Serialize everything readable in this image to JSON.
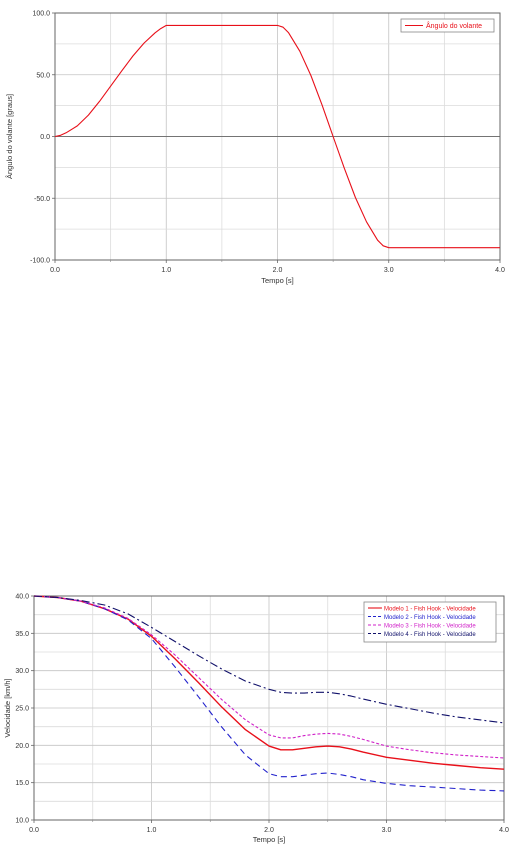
{
  "chart_data": [
    {
      "type": "line",
      "xlabel": "Tempo [s]",
      "ylabel": "Ângulo do volante [graus]",
      "xlim": [
        0,
        4
      ],
      "ylim": [
        -100,
        100
      ],
      "x_ticks": [
        "0.0",
        "1.0",
        "2.0",
        "3.0",
        "4.0"
      ],
      "y_ticks": [
        "100.0",
        "50.0",
        "0.0",
        "-50.0",
        "-100.0"
      ],
      "grid": true,
      "legend_position": "top-right",
      "series": [
        {
          "name": "Ângulo do volante",
          "color": "#e8101a",
          "dash": "solid",
          "x": [
            0,
            0.05,
            0.1,
            0.2,
            0.3,
            0.4,
            0.5,
            0.6,
            0.7,
            0.8,
            0.9,
            0.95,
            1.0,
            1.5,
            2.0,
            2.05,
            2.1,
            2.2,
            2.3,
            2.4,
            2.5,
            2.6,
            2.7,
            2.8,
            2.9,
            2.95,
            3.0,
            3.5,
            4.0
          ],
          "y": [
            0,
            1,
            3,
            8.6,
            17.3,
            28.4,
            40.7,
            53.2,
            65.2,
            75.6,
            84,
            87.4,
            90,
            90,
            90,
            88.5,
            84,
            69.1,
            49.4,
            25.7,
            0,
            -25.7,
            -49.4,
            -69.1,
            -84,
            -88.5,
            -90,
            -90,
            -90
          ]
        }
      ]
    },
    {
      "type": "line",
      "xlabel": "Tempo [s]",
      "ylabel": "Velocidade [km/h]",
      "xlim": [
        0,
        4
      ],
      "ylim": [
        10,
        40
      ],
      "x_ticks": [
        "0.0",
        "1.0",
        "2.0",
        "3.0",
        "4.0"
      ],
      "y_ticks": [
        "40.0",
        "35.0",
        "30.0",
        "25.0",
        "20.0",
        "15.0",
        "10.0"
      ],
      "grid": true,
      "legend_position": "top-right",
      "series": [
        {
          "name": "Modelo 1 - Fish Hook - Velocidade",
          "color": "#e8101a",
          "dash": "solid",
          "x": [
            0,
            0.2,
            0.4,
            0.6,
            0.8,
            1.0,
            1.2,
            1.4,
            1.6,
            1.8,
            2.0,
            2.1,
            2.2,
            2.3,
            2.4,
            2.5,
            2.6,
            2.7,
            2.8,
            3.0,
            3.2,
            3.4,
            3.6,
            3.8,
            4.0
          ],
          "y": [
            40,
            39.8,
            39.3,
            38.3,
            36.9,
            34.6,
            31.6,
            28.4,
            25.1,
            22.1,
            19.9,
            19.4,
            19.4,
            19.6,
            19.8,
            19.9,
            19.8,
            19.5,
            19.1,
            18.4,
            18.0,
            17.6,
            17.3,
            17.0,
            16.8
          ]
        },
        {
          "name": "Modelo 2 - Fish Hook - Velocidade",
          "color": "#2222cc",
          "dash": "6,4",
          "x": [
            0,
            0.2,
            0.4,
            0.6,
            0.8,
            1.0,
            1.2,
            1.4,
            1.6,
            1.8,
            2.0,
            2.1,
            2.2,
            2.3,
            2.4,
            2.5,
            2.6,
            2.7,
            2.8,
            3.0,
            3.2,
            3.4,
            3.6,
            3.8,
            4.0
          ],
          "y": [
            40,
            39.8,
            39.3,
            38.3,
            36.8,
            34.3,
            30.5,
            26.5,
            22.4,
            18.7,
            16.2,
            15.8,
            15.8,
            16.0,
            16.2,
            16.3,
            16.1,
            15.8,
            15.4,
            14.9,
            14.6,
            14.4,
            14.2,
            14.0,
            13.9
          ]
        },
        {
          "name": "Modelo 3 - Fish Hook - Velocidade",
          "color": "#d020c8",
          "dash": "3,2",
          "x": [
            0,
            0.2,
            0.4,
            0.6,
            0.8,
            1.0,
            1.2,
            1.4,
            1.6,
            1.8,
            2.0,
            2.1,
            2.2,
            2.3,
            2.4,
            2.5,
            2.6,
            2.7,
            2.8,
            3.0,
            3.2,
            3.4,
            3.6,
            3.8,
            4.0
          ],
          "y": [
            40,
            39.8,
            39.3,
            38.4,
            37.0,
            34.8,
            32.1,
            29.1,
            26.1,
            23.4,
            21.4,
            21.0,
            21.0,
            21.3,
            21.5,
            21.6,
            21.5,
            21.2,
            20.8,
            19.9,
            19.4,
            19.0,
            18.7,
            18.5,
            18.3
          ]
        },
        {
          "name": "Modelo 4 - Fish Hook - Velocidade",
          "color": "#10106a",
          "dash": "8,3,2,3",
          "x": [
            0,
            0.2,
            0.4,
            0.6,
            0.8,
            1.0,
            1.2,
            1.4,
            1.6,
            1.8,
            2.0,
            2.1,
            2.2,
            2.3,
            2.4,
            2.5,
            2.6,
            2.7,
            2.8,
            3.0,
            3.2,
            3.4,
            3.6,
            3.8,
            4.0
          ],
          "y": [
            40,
            39.8,
            39.4,
            38.8,
            37.6,
            35.8,
            33.9,
            32.0,
            30.2,
            28.6,
            27.5,
            27.1,
            27.0,
            27.0,
            27.1,
            27.1,
            26.9,
            26.6,
            26.2,
            25.5,
            24.9,
            24.3,
            23.8,
            23.4,
            23.0
          ]
        }
      ]
    }
  ]
}
